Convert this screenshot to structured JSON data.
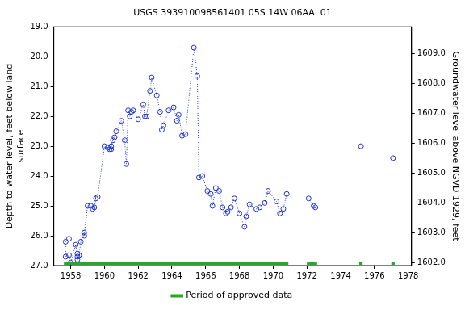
{
  "chart_data": {
    "type": "scatter",
    "title": "USGS 393910098561401 05S 14W 06AA  01",
    "y_label": [
      "Depth to water level, feet below land",
      "surface"
    ],
    "y2_label": "Groundwater level above NGVD 1929, feet",
    "marker": "circle",
    "line_style": "dotted",
    "color": "#1f33cc",
    "grid": false,
    "legend": "bottom",
    "x": [
      1957.7,
      1957.7,
      1957.9,
      1957.9,
      1958.0,
      1958.3,
      1958.4,
      1958.4,
      1958.4,
      1958.5,
      1958.6,
      1958.8,
      1958.8,
      1959.0,
      1959.2,
      1959.3,
      1959.4,
      1959.5,
      1959.6,
      1960.0,
      1960.2,
      1960.3,
      1960.4,
      1960.4,
      1960.5,
      1960.6,
      1960.7,
      1961.0,
      1961.2,
      1961.3,
      1961.4,
      1961.5,
      1961.6,
      1961.7,
      1962.0,
      1962.3,
      1962.4,
      1962.5,
      1962.7,
      1962.8,
      1963.1,
      1963.3,
      1963.4,
      1963.5,
      1963.8,
      1964.1,
      1964.3,
      1964.4,
      1964.6,
      1964.8,
      1965.3,
      1965.5,
      1965.6,
      1965.8,
      1966.1,
      1966.3,
      1966.4,
      1966.6,
      1966.8,
      1967.0,
      1967.2,
      1967.3,
      1967.5,
      1967.7,
      1968.0,
      1968.3,
      1968.4,
      1968.6,
      1969.0,
      1969.2,
      1969.5,
      1969.7,
      1970.2,
      1970.4,
      1970.6,
      1970.8,
      null,
      1972.1,
      1972.4,
      1972.5,
      null,
      1975.2,
      null,
      1977.1
    ],
    "values": [
      26.7,
      26.2,
      26.1,
      26.65,
      26.9,
      26.3,
      26.6,
      26.7,
      26.8,
      26.65,
      26.2,
      25.9,
      26.0,
      25.0,
      25.0,
      25.1,
      25.05,
      24.75,
      24.7,
      23.0,
      23.05,
      23.1,
      23.1,
      23.0,
      22.8,
      22.7,
      22.5,
      22.15,
      22.8,
      23.6,
      21.8,
      22.0,
      21.85,
      21.8,
      22.1,
      21.6,
      22.0,
      22.0,
      21.15,
      20.7,
      21.3,
      21.85,
      22.45,
      22.3,
      21.8,
      21.7,
      22.15,
      21.95,
      22.65,
      22.6,
      19.7,
      20.65,
      24.05,
      24.0,
      24.5,
      24.6,
      25.0,
      24.4,
      24.5,
      25.05,
      25.25,
      25.2,
      25.05,
      24.75,
      25.25,
      25.7,
      25.35,
      24.95,
      25.1,
      25.05,
      24.9,
      24.5,
      24.85,
      25.25,
      25.1,
      24.6,
      null,
      24.75,
      25.0,
      25.05,
      null,
      23.0,
      null,
      23.4
    ],
    "xlim": [
      1957.0,
      1978.2
    ],
    "xticks": [
      1958,
      1960,
      1962,
      1964,
      1966,
      1968,
      1970,
      1972,
      1974,
      1976,
      1978
    ],
    "ylim": [
      27.0,
      19.0
    ],
    "yticks": [
      {
        "value": 19,
        "label": "19.0"
      },
      {
        "value": 20,
        "label": "20.0"
      },
      {
        "value": 21,
        "label": "21.0"
      },
      {
        "value": 22,
        "label": "22.0"
      },
      {
        "value": 23,
        "label": "23.0"
      },
      {
        "value": 24,
        "label": "24.0"
      },
      {
        "value": 25,
        "label": "25.0"
      },
      {
        "value": 26,
        "label": "26.0"
      },
      {
        "value": 27,
        "label": "27.0"
      }
    ],
    "y2lim": [
      1601.9,
      1609.9
    ],
    "y2ticks": [
      {
        "value": 1602,
        "label": "1602.0"
      },
      {
        "value": 1603,
        "label": "1603.0"
      },
      {
        "value": 1604,
        "label": "1604.0"
      },
      {
        "value": 1605,
        "label": "1605.0"
      },
      {
        "value": 1606,
        "label": "1606.0"
      },
      {
        "value": 1607,
        "label": "1607.0"
      },
      {
        "value": 1608,
        "label": "1608.0"
      },
      {
        "value": 1609,
        "label": "1609.0"
      }
    ],
    "approved_periods": {
      "name": "Period of approved data",
      "color": "#22aa22",
      "ranges": [
        [
          1957.6,
          1970.9
        ],
        [
          1972.0,
          1972.6
        ],
        [
          1975.1,
          1975.3
        ],
        [
          1977.0,
          1977.2
        ]
      ]
    }
  }
}
